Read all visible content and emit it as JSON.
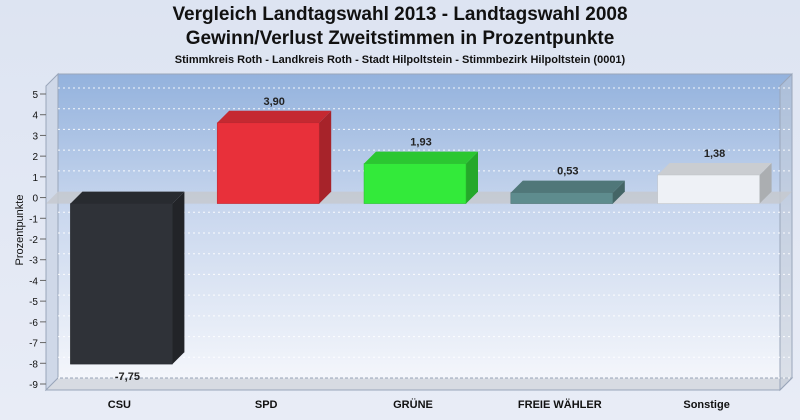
{
  "titles": {
    "line1": "Vergleich Landtagswahl 2013 - Landtagswahl 2008",
    "line2": "Gewinn/Verlust Zweitstimmen in Prozentpunkte",
    "line3": "Stimmkreis Roth - Landkreis Roth - Stadt Hilpoltstein - Stimmbezirk Hilpoltstein (0001)"
  },
  "chart_data": {
    "type": "bar",
    "title": "Vergleich Landtagswahl 2013 - Landtagswahl 2008",
    "subtitle": "Gewinn/Verlust Zweitstimmen in Prozentpunkte",
    "ylabel": "Prozentpunkte",
    "xlabel": "",
    "ylim": [
      -9,
      5
    ],
    "yticks": [
      5,
      4,
      3,
      2,
      1,
      0,
      -1,
      -2,
      -3,
      -4,
      -5,
      -6,
      -7,
      -8,
      -9
    ],
    "grid": true,
    "categories": [
      "CSU",
      "SPD",
      "GRÜNE",
      "FREIE WÄHLER",
      "Sonstige"
    ],
    "values": [
      -7.75,
      3.9,
      1.93,
      0.53,
      1.38
    ],
    "labels": [
      "-7,75",
      "3,90",
      "1,93",
      "0,53",
      "1,38"
    ],
    "colors": [
      "#2f3238",
      "#e8303a",
      "#33ea3a",
      "#5e8c8e",
      "#eef1f6"
    ]
  }
}
